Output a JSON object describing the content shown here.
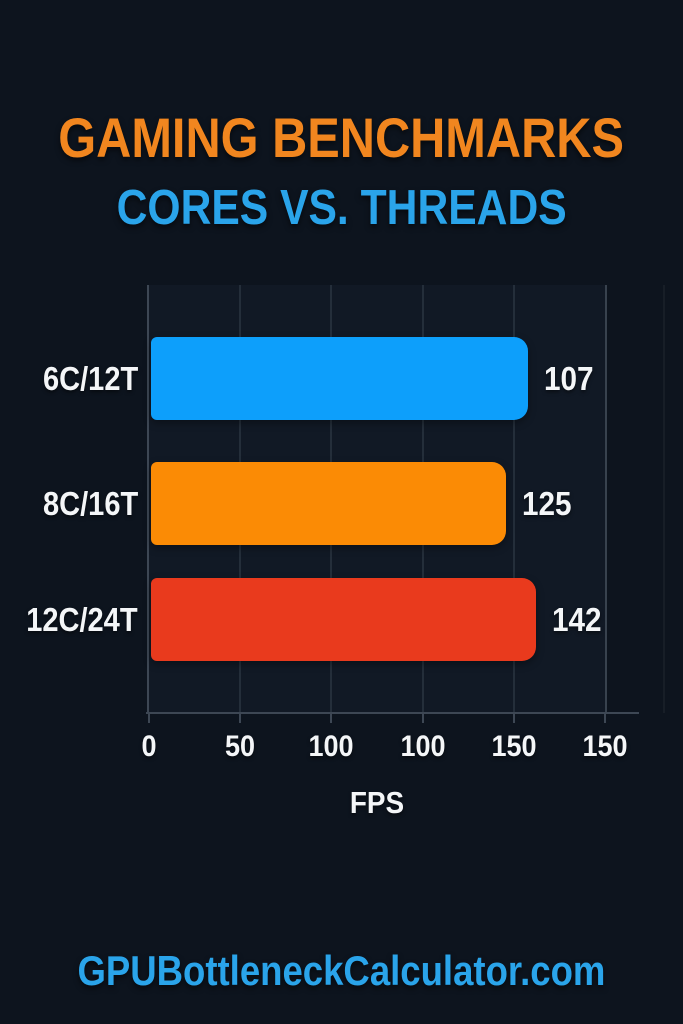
{
  "page": {
    "background": "#0d141e",
    "title": "GAMING BENCHMARKS",
    "title_color": "#f1861f",
    "subtitle": "CORES VS. THREADS",
    "subtitle_color": "#2aa4ea",
    "footer": "GPUBottleneckCalculator.com",
    "footer_color": "#2aa4ea"
  },
  "chart_data": {
    "type": "bar",
    "orientation": "horizontal",
    "title": "GAMING BENCHMARKS",
    "subtitle": "CORES VS. THREADS",
    "categories": [
      "6C/12T",
      "8C/16T",
      "12C/24T"
    ],
    "values": [
      107,
      125,
      142
    ],
    "value_labels": [
      "107",
      "125",
      "142"
    ],
    "bar_colors": [
      "#0d9ffb",
      "#fb8b05",
      "#e93a1d"
    ],
    "xlabel": "FPS",
    "ylabel": "",
    "xlim": [
      0,
      150
    ],
    "x_tick_labels": [
      "0",
      "50",
      "100",
      "100",
      "150",
      "150"
    ],
    "grid": true,
    "legend": false,
    "text_color": "#f4f6f8",
    "bar_visual_fractions": [
      0.83,
      0.781,
      0.849
    ]
  }
}
